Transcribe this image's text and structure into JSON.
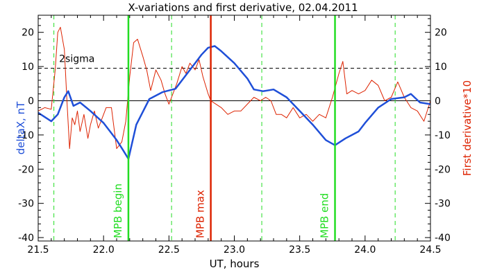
{
  "chart_data": {
    "type": "line",
    "title": "X-variations and first derivative, 02.04.2011",
    "xlabel": "UT, hours",
    "ylabel_left": "deltaX, nT",
    "ylabel_right": "First derivative*10",
    "xlim": [
      21.5,
      24.5
    ],
    "ylim": [
      -41,
      25
    ],
    "xticks": [
      "21.5",
      "22.0",
      "22.5",
      "23.0",
      "23.5",
      "24.0",
      "24.5"
    ],
    "yticks_left": [
      "20",
      "10",
      "0",
      "-10",
      "-20",
      "-30",
      "-40"
    ],
    "yticks_right": [
      "20",
      "10",
      "0",
      "-10",
      "-20",
      "-30",
      "-40"
    ],
    "sigma_level": 9.5,
    "sigma_label": "2sigma",
    "vertical_markers": [
      {
        "label": "MPB begin",
        "x": 22.19,
        "color": "#22dd22"
      },
      {
        "label": "MPB max",
        "x": 22.82,
        "color": "#dd2200"
      },
      {
        "label": "MPB end",
        "x": 23.77,
        "color": "#22dd22"
      }
    ],
    "dashed_green_lines": [
      21.62,
      22.52,
      23.21,
      24.23
    ],
    "colors": {
      "deltaX": "#1f4fd8",
      "derivative": "#dd2200",
      "green": "#22dd22",
      "left_axis_label": "#1f4fd8",
      "right_axis_label": "#dd2200"
    },
    "series": [
      {
        "name": "deltaX, nT",
        "x": [
          21.5,
          21.6,
          21.65,
          21.7,
          21.73,
          21.77,
          21.82,
          21.9,
          22.0,
          22.05,
          22.1,
          22.15,
          22.19,
          22.25,
          22.35,
          22.45,
          22.55,
          22.65,
          22.7,
          22.75,
          22.8,
          22.85,
          22.9,
          23.0,
          23.1,
          23.15,
          23.22,
          23.3,
          23.4,
          23.5,
          23.6,
          23.7,
          23.77,
          23.85,
          23.95,
          24.0,
          24.1,
          24.2,
          24.3,
          24.35,
          24.42,
          24.5
        ],
        "y": [
          -3.5,
          -6,
          -4,
          1,
          2.8,
          -1.5,
          -0.5,
          -3,
          -6.5,
          -9,
          -11.5,
          -14.5,
          -17,
          -7,
          0.5,
          2.5,
          3.5,
          8.5,
          11,
          13.5,
          15.5,
          16,
          14.5,
          11,
          6.5,
          3.3,
          2.8,
          3.3,
          1,
          -3,
          -7,
          -11.5,
          -13,
          -11,
          -9,
          -6.5,
          -2,
          0.5,
          1,
          2,
          -0.5,
          -1
        ]
      },
      {
        "name": "First derivative*10",
        "x": [
          21.5,
          21.55,
          21.6,
          21.63,
          21.65,
          21.67,
          21.7,
          21.72,
          21.74,
          21.76,
          21.78,
          21.8,
          21.82,
          21.85,
          21.88,
          21.9,
          21.93,
          21.96,
          21.99,
          22.02,
          22.06,
          22.1,
          22.14,
          22.17,
          22.2,
          22.23,
          22.26,
          22.3,
          22.33,
          22.36,
          22.4,
          22.44,
          22.47,
          22.5,
          22.53,
          22.56,
          22.6,
          22.63,
          22.66,
          22.7,
          22.73,
          22.76,
          22.8,
          22.82,
          22.86,
          22.9,
          22.95,
          23.0,
          23.05,
          23.1,
          23.15,
          23.2,
          23.24,
          23.28,
          23.32,
          23.36,
          23.4,
          23.45,
          23.5,
          23.55,
          23.6,
          23.65,
          23.7,
          23.75,
          23.8,
          23.83,
          23.86,
          23.9,
          23.95,
          24.0,
          24.05,
          24.1,
          24.15,
          24.2,
          24.25,
          24.3,
          24.35,
          24.4,
          24.45,
          24.5
        ],
        "y": [
          -3,
          -2,
          -2.5,
          9,
          20,
          21.5,
          15,
          0,
          -14,
          -5,
          -7,
          -3,
          -9,
          -4,
          -11,
          -7,
          -3,
          -8,
          -5,
          -2,
          -2,
          -14,
          -12,
          -6,
          7,
          17,
          18,
          13,
          9,
          3,
          9,
          6,
          2,
          -1,
          2,
          5,
          10,
          8,
          11,
          9,
          12,
          7,
          2,
          0,
          -1,
          -2,
          -4,
          -3,
          -3,
          -1,
          1,
          0,
          1,
          0,
          -4,
          -4,
          -5,
          -2,
          -5,
          -4,
          -6,
          -4,
          -5,
          1,
          8,
          11.5,
          2,
          3,
          2,
          3,
          6,
          4.5,
          0,
          1,
          5.5,
          1,
          -2,
          -3,
          -6,
          0
        ]
      }
    ]
  }
}
